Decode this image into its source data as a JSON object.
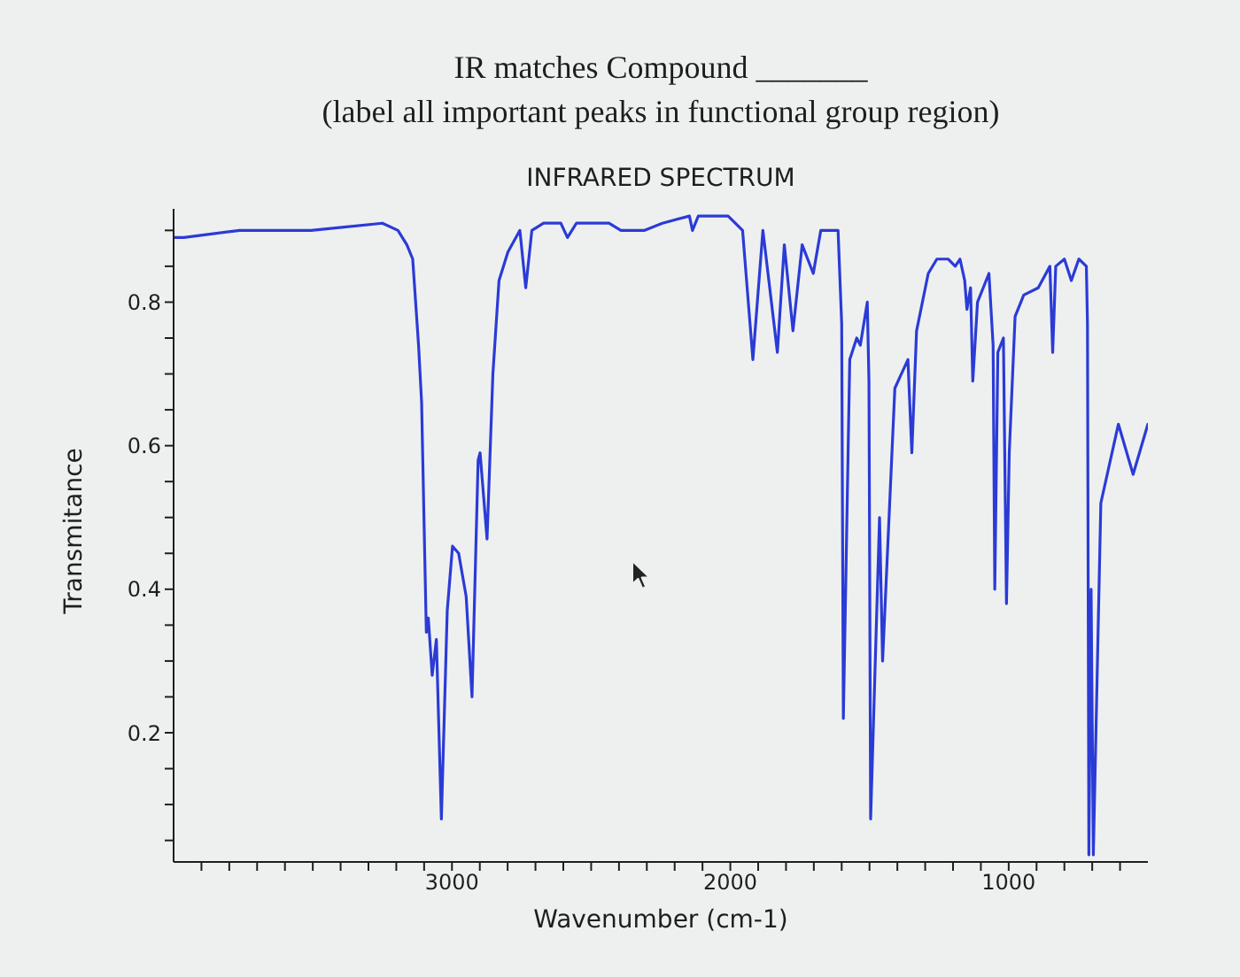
{
  "chart_data": {
    "type": "line",
    "title": "IR matches Compound _______",
    "subtitle": "(label all important peaks in functional group region)",
    "annotations": [
      "INFRARED SPECTRUM"
    ],
    "xlabel": "Wavenumber (cm-1)",
    "ylabel": "Transmitance",
    "x": [
      4000,
      3963,
      3763,
      3506,
      3250,
      3194,
      3162,
      3141,
      3120,
      3109,
      3098,
      3092,
      3085,
      3071,
      3056,
      3038,
      3017,
      2998,
      2976,
      2949,
      2928,
      2906,
      2899,
      2874,
      2853,
      2831,
      2799,
      2756,
      2735,
      2713,
      2671,
      2609,
      2585,
      2553,
      2436,
      2393,
      2308,
      2244,
      2147,
      2136,
      2115,
      2008,
      1956,
      1919,
      1883,
      1831,
      1806,
      1775,
      1742,
      1702,
      1675,
      1623,
      1613,
      1600,
      1594,
      1571,
      1546,
      1533,
      1508,
      1502,
      1496,
      1464,
      1453,
      1409,
      1362,
      1348,
      1331,
      1289,
      1258,
      1217,
      1192,
      1175,
      1158,
      1150,
      1137,
      1129,
      1112,
      1071,
      1056,
      1050,
      1039,
      1019,
      1008,
      998,
      977,
      946,
      894,
      852,
      842,
      831,
      800,
      775,
      748,
      721,
      717,
      712,
      704,
      696,
      669,
      606,
      553,
      500
    ],
    "series": [
      {
        "color": "#2b3bd6",
        "values": [
          0.89,
          0.89,
          0.9,
          0.9,
          0.91,
          0.9,
          0.88,
          0.86,
          0.74,
          0.66,
          0.45,
          0.34,
          0.36,
          0.28,
          0.33,
          0.08,
          0.37,
          0.46,
          0.45,
          0.39,
          0.25,
          0.58,
          0.59,
          0.47,
          0.7,
          0.83,
          0.87,
          0.9,
          0.82,
          0.9,
          0.91,
          0.91,
          0.89,
          0.91,
          0.91,
          0.9,
          0.9,
          0.91,
          0.92,
          0.9,
          0.92,
          0.92,
          0.9,
          0.72,
          0.9,
          0.73,
          0.88,
          0.76,
          0.88,
          0.84,
          0.9,
          0.9,
          0.9,
          0.77,
          0.22,
          0.72,
          0.75,
          0.74,
          0.8,
          0.69,
          0.08,
          0.5,
          0.3,
          0.68,
          0.72,
          0.59,
          0.76,
          0.84,
          0.86,
          0.86,
          0.85,
          0.86,
          0.83,
          0.79,
          0.82,
          0.69,
          0.8,
          0.84,
          0.74,
          0.4,
          0.73,
          0.75,
          0.38,
          0.59,
          0.78,
          0.81,
          0.82,
          0.85,
          0.73,
          0.85,
          0.86,
          0.83,
          0.86,
          0.85,
          0.77,
          0.03,
          0.4,
          0.03,
          0.52,
          0.63,
          0.56,
          0.63
        ]
      }
    ],
    "xlim": [
      4000,
      500
    ],
    "ylim": [
      0.02,
      0.93
    ],
    "xticks": [
      {
        "value": 3900,
        "label": null
      },
      {
        "value": 3800,
        "label": null
      },
      {
        "value": 3700,
        "label": null
      },
      {
        "value": 3600,
        "label": null
      },
      {
        "value": 3500,
        "label": null
      },
      {
        "value": 3400,
        "label": null
      },
      {
        "value": 3300,
        "label": null
      },
      {
        "value": 3200,
        "label": null
      },
      {
        "value": 3100,
        "label": null
      },
      3000,
      {
        "value": 2900,
        "label": null
      },
      {
        "value": 2800,
        "label": null
      },
      {
        "value": 2700,
        "label": null
      },
      {
        "value": 2600,
        "label": null
      },
      {
        "value": 2500,
        "label": null
      },
      {
        "value": 2400,
        "label": null
      },
      {
        "value": 2300,
        "label": null
      },
      {
        "value": 2200,
        "label": null
      },
      {
        "value": 2100,
        "label": null
      },
      2000,
      {
        "value": 1900,
        "label": null
      },
      {
        "value": 1800,
        "label": null
      },
      {
        "value": 1700,
        "label": null
      },
      {
        "value": 1600,
        "label": null
      },
      {
        "value": 1500,
        "label": null
      },
      {
        "value": 1400,
        "label": null
      },
      {
        "value": 1300,
        "label": null
      },
      {
        "value": 1200,
        "label": null
      },
      {
        "value": 1100,
        "label": null
      },
      1000,
      {
        "value": 900,
        "label": null
      },
      {
        "value": 800,
        "label": null
      },
      {
        "value": 700,
        "label": null
      },
      {
        "value": 600,
        "label": null
      }
    ],
    "yticks": [
      {
        "value": 0.05,
        "label": null
      },
      {
        "value": 0.1,
        "label": null
      },
      {
        "value": 0.15,
        "label": null
      },
      0.2,
      {
        "value": 0.25,
        "label": null
      },
      {
        "value": 0.3,
        "label": null
      },
      {
        "value": 0.35,
        "label": null
      },
      0.4,
      {
        "value": 0.45,
        "label": null
      },
      {
        "value": 0.5,
        "label": null
      },
      {
        "value": 0.55,
        "label": null
      },
      0.6,
      {
        "value": 0.65,
        "label": null
      },
      {
        "value": 0.7,
        "label": null
      },
      {
        "value": 0.75,
        "label": null
      },
      0.8,
      {
        "value": 0.85,
        "label": null
      },
      {
        "value": 0.9,
        "label": null
      }
    ]
  }
}
